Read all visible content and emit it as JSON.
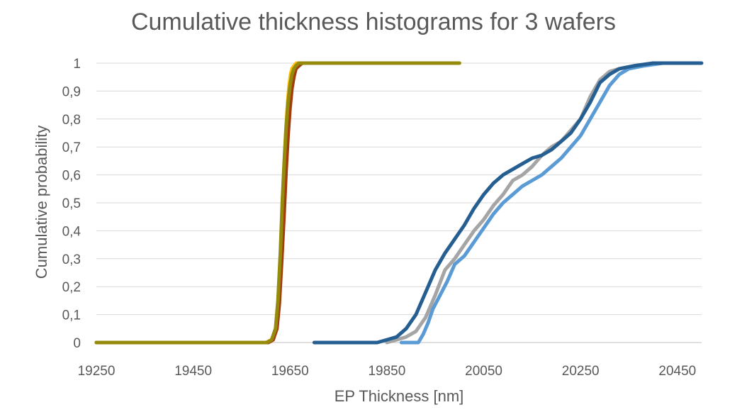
{
  "chart_data": {
    "type": "line",
    "title": "Cumulative thickness histograms for 3 wafers",
    "xlabel": "EP Thickness [nm]",
    "ylabel": "Cumulative probability",
    "xlim": [
      19250,
      20500
    ],
    "ylim": [
      0,
      1
    ],
    "x_ticks": [
      "19250",
      "19450",
      "19650",
      "19850",
      "20050",
      "20250",
      "20450"
    ],
    "y_ticks": [
      "0",
      "0,1",
      "0,2",
      "0,3",
      "0,4",
      "0,5",
      "0,6",
      "0,7",
      "0,8",
      "0,9",
      "1"
    ],
    "x_tick_values": [
      19250,
      19450,
      19650,
      19850,
      20050,
      20250,
      20450
    ],
    "y_tick_values": [
      0,
      0.1,
      0.2,
      0.3,
      0.4,
      0.5,
      0.6,
      0.7,
      0.8,
      0.9,
      1
    ],
    "grid": true,
    "legend": "none",
    "series": [
      {
        "color": "#ffc000",
        "x": [
          19250,
          19600,
          19612,
          19620,
          19625,
          19630,
          19633,
          19636,
          19639,
          19642,
          19645,
          19648,
          19651,
          19654,
          19658,
          19663,
          19670,
          19700
        ],
        "y": [
          0,
          0,
          0.01,
          0.04,
          0.1,
          0.25,
          0.4,
          0.55,
          0.68,
          0.78,
          0.86,
          0.92,
          0.96,
          0.98,
          0.99,
          1,
          1,
          1
        ]
      },
      {
        "color": "#ed7d31",
        "x": [
          19250,
          19605,
          19615,
          19622,
          19627,
          19632,
          19636,
          19640,
          19644,
          19648,
          19652,
          19656,
          19660,
          19665,
          19672,
          19690
        ],
        "y": [
          0,
          0,
          0.01,
          0.05,
          0.14,
          0.3,
          0.46,
          0.6,
          0.72,
          0.82,
          0.89,
          0.94,
          0.97,
          0.99,
          1,
          1
        ]
      },
      {
        "color": "#a33b0c",
        "x": [
          19250,
          19605,
          19615,
          19623,
          19628,
          19633,
          19638,
          19642,
          19646,
          19650,
          19654,
          19658,
          19662,
          19668,
          19675,
          19700
        ],
        "y": [
          0,
          0,
          0.01,
          0.05,
          0.14,
          0.3,
          0.47,
          0.62,
          0.74,
          0.84,
          0.91,
          0.95,
          0.98,
          0.99,
          1,
          1
        ]
      },
      {
        "color": "#948a0c",
        "x": [
          19250,
          19602,
          19612,
          19620,
          19625,
          19630,
          19634,
          19638,
          19642,
          19646,
          19650,
          19654,
          19658,
          19662,
          19668,
          19680,
          20000
        ],
        "y": [
          0,
          0,
          0.01,
          0.05,
          0.15,
          0.32,
          0.5,
          0.65,
          0.77,
          0.86,
          0.92,
          0.96,
          0.98,
          0.99,
          1,
          1,
          1
        ]
      },
      {
        "color": "#a5a5a5",
        "x": [
          19850,
          19870,
          19890,
          19910,
          19930,
          19950,
          19970,
          19990,
          20010,
          20030,
          20050,
          20070,
          20090,
          20110,
          20130,
          20150,
          20170,
          20190,
          20210,
          20230,
          20250,
          20270,
          20290,
          20310,
          20330,
          20360,
          20400,
          20430
        ],
        "y": [
          0,
          0.01,
          0.02,
          0.04,
          0.09,
          0.17,
          0.26,
          0.3,
          0.35,
          0.4,
          0.44,
          0.49,
          0.53,
          0.58,
          0.6,
          0.63,
          0.67,
          0.7,
          0.72,
          0.76,
          0.8,
          0.88,
          0.94,
          0.97,
          0.98,
          0.99,
          1,
          1
        ]
      },
      {
        "color": "#5b9bd5",
        "x": [
          19880,
          19915,
          19925,
          19935,
          19945,
          19960,
          19975,
          19990,
          20010,
          20030,
          20050,
          20070,
          20090,
          20110,
          20130,
          20150,
          20170,
          20190,
          20210,
          20230,
          20250,
          20270,
          20290,
          20310,
          20330,
          20350,
          20380,
          20420
        ],
        "y": [
          0,
          0,
          0.03,
          0.07,
          0.12,
          0.17,
          0.22,
          0.28,
          0.31,
          0.36,
          0.41,
          0.46,
          0.5,
          0.53,
          0.56,
          0.58,
          0.6,
          0.63,
          0.66,
          0.7,
          0.74,
          0.8,
          0.86,
          0.92,
          0.96,
          0.98,
          0.99,
          1
        ]
      },
      {
        "color": "#255e91",
        "x": [
          19700,
          19830,
          19850,
          19870,
          19890,
          19910,
          19930,
          19950,
          19970,
          19990,
          20010,
          20030,
          20050,
          20070,
          20090,
          20110,
          20130,
          20150,
          20170,
          20190,
          20210,
          20230,
          20250,
          20270,
          20290,
          20310,
          20330,
          20360,
          20400,
          20500
        ],
        "y": [
          0,
          0,
          0.01,
          0.02,
          0.05,
          0.1,
          0.18,
          0.26,
          0.32,
          0.37,
          0.42,
          0.48,
          0.53,
          0.57,
          0.6,
          0.62,
          0.64,
          0.66,
          0.67,
          0.69,
          0.72,
          0.75,
          0.8,
          0.86,
          0.93,
          0.96,
          0.98,
          0.99,
          1,
          1
        ]
      }
    ]
  }
}
